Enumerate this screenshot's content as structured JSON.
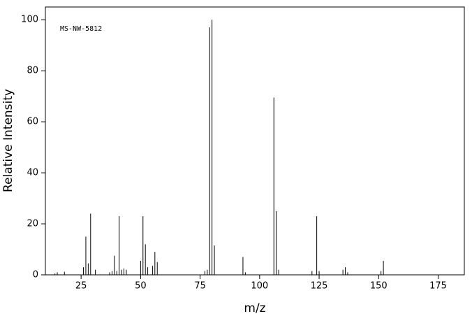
{
  "chart_data": {
    "type": "stem",
    "annotation": "MS-NW-5812",
    "x_label": "m/z",
    "y_label": "Relative Intensity",
    "color": "#000000",
    "x": [
      14,
      15,
      18,
      26,
      27,
      28,
      29,
      31,
      37,
      38,
      39,
      40,
      41,
      42,
      43,
      44,
      50,
      51,
      52,
      53,
      55,
      56,
      57,
      77,
      78,
      79,
      80,
      81,
      93,
      94,
      106,
      107,
      108,
      122,
      124,
      125,
      135,
      136,
      137,
      151,
      152
    ],
    "values": [
      0.5,
      1,
      1.2,
      3,
      15,
      4.5,
      24,
      2,
      1,
      1.5,
      7.5,
      1.5,
      23,
      2,
      2.5,
      2,
      5.5,
      23,
      12,
      3,
      3.5,
      9,
      5,
      1.5,
      2,
      97,
      100,
      11.5,
      7,
      1,
      69.5,
      25,
      2,
      1.5,
      23,
      1.5,
      2,
      3,
      1,
      1.5,
      5.5
    ],
    "xlim": [
      10,
      186
    ],
    "ylim": [
      0,
      105
    ],
    "xticks": [
      25,
      50,
      75,
      100,
      125,
      150,
      175
    ],
    "yticks": [
      0,
      20,
      40,
      60,
      80,
      100
    ]
  }
}
